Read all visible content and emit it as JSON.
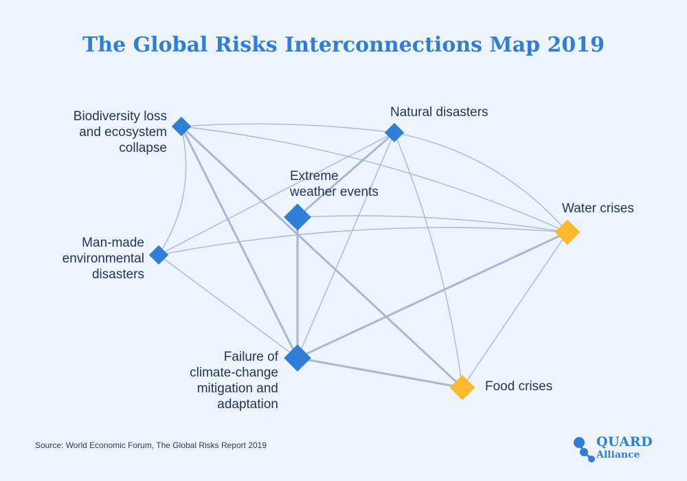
{
  "title": "The Global Risks Interconnections Map 2019",
  "source": "Source: World Economic Forum, The Global Risks Report 2019",
  "logo": {
    "name": "QUARD",
    "sub": "Alliance"
  },
  "colors": {
    "blue": "#2f7fd8",
    "yellow": "#fbb92e",
    "edge": "#a6b8d2"
  },
  "nodes": [
    {
      "id": "biodiversity",
      "label": "Biodiversity loss\nand ecosystem\ncollapse",
      "color": "blue"
    },
    {
      "id": "natural",
      "label": "Natural disasters",
      "color": "blue"
    },
    {
      "id": "extreme",
      "label": "Extreme\nweather events",
      "color": "blue"
    },
    {
      "id": "water",
      "label": "Water crises",
      "color": "yellow"
    },
    {
      "id": "manmade",
      "label": "Man-made\nenvironmental\ndisasters",
      "color": "blue"
    },
    {
      "id": "failure",
      "label": "Failure of\nclimate-change\nmitigation and\nadaptation",
      "color": "blue"
    },
    {
      "id": "food",
      "label": "Food crises",
      "color": "yellow"
    }
  ],
  "edges": [
    {
      "from": "biodiversity",
      "to": "failure",
      "strength": "strong"
    },
    {
      "from": "biodiversity",
      "to": "food",
      "strength": "strong"
    },
    {
      "from": "extreme",
      "to": "failure",
      "strength": "strong"
    },
    {
      "from": "extreme",
      "to": "natural",
      "strength": "strong"
    },
    {
      "from": "failure",
      "to": "water",
      "strength": "strong"
    },
    {
      "from": "failure",
      "to": "food",
      "strength": "strong"
    },
    {
      "from": "biodiversity",
      "to": "manmade",
      "strength": "medium"
    },
    {
      "from": "biodiversity",
      "to": "water",
      "strength": "medium"
    },
    {
      "from": "biodiversity",
      "to": "natural",
      "strength": "medium"
    },
    {
      "from": "manmade",
      "to": "failure",
      "strength": "medium"
    },
    {
      "from": "manmade",
      "to": "natural",
      "strength": "medium"
    },
    {
      "from": "manmade",
      "to": "water",
      "strength": "medium"
    },
    {
      "from": "natural",
      "to": "failure",
      "strength": "medium"
    },
    {
      "from": "natural",
      "to": "water",
      "strength": "medium"
    },
    {
      "from": "natural",
      "to": "food",
      "strength": "medium"
    },
    {
      "from": "extreme",
      "to": "water",
      "strength": "medium"
    },
    {
      "from": "water",
      "to": "food",
      "strength": "medium"
    }
  ]
}
